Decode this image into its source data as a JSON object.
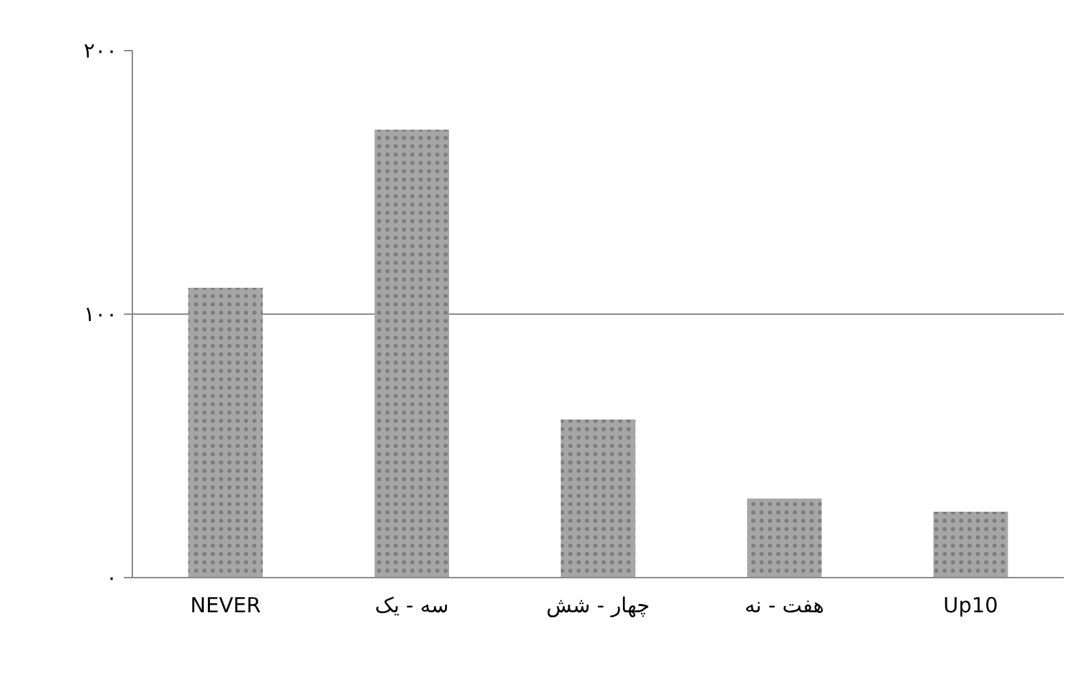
{
  "chart_data": {
    "type": "bar",
    "categories": [
      "NEVER",
      "سه - یک",
      "چهار - شش",
      "هفت - نه",
      "Up10"
    ],
    "values": [
      110,
      170,
      60,
      30,
      25
    ],
    "color": "#a6a6a6",
    "ylim": [
      0,
      200
    ],
    "yticks": [
      {
        "value": 0,
        "label": "۰"
      },
      {
        "value": 100,
        "label": "۱۰۰"
      },
      {
        "value": 200,
        "label": "۲۰۰"
      }
    ],
    "grid": "y"
  }
}
